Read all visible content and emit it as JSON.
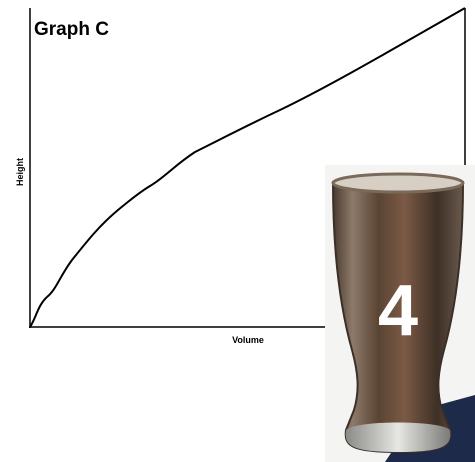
{
  "graph": {
    "title": "Graph C",
    "x_label": "Volume",
    "y_label": "Height"
  },
  "glass": {
    "label": "4"
  }
}
